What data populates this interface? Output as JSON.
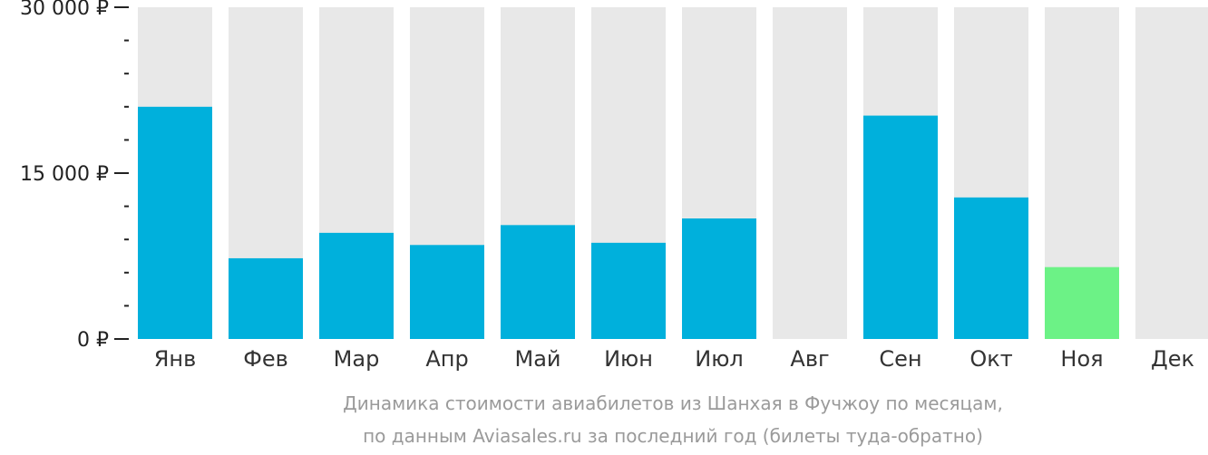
{
  "chart_data": {
    "type": "bar",
    "categories": [
      "Янв",
      "Фев",
      "Мар",
      "Апр",
      "Май",
      "Июн",
      "Июл",
      "Авг",
      "Сен",
      "Окт",
      "Ноя",
      "Дек"
    ],
    "values": [
      21000,
      7300,
      9600,
      8500,
      10300,
      8700,
      10900,
      null,
      20200,
      12800,
      6500,
      null
    ],
    "ylim": [
      0,
      30000
    ],
    "yticks": [
      {
        "value": 0,
        "label": "0 ₽"
      },
      {
        "value": 15000,
        "label": "15 000 ₽"
      },
      {
        "value": 30000,
        "label": "30 000 ₽"
      }
    ],
    "minor_tick_step": 3000,
    "highlight_category": "Ноя",
    "colors": {
      "bar": "#00b0dc",
      "highlight": "#6cf286",
      "track": "#e8e8e8",
      "axis": "#222222",
      "caption": "#9a9a9a"
    },
    "caption": [
      "Динамика стоимости авиабилетов из Шанхая в Фучжоу по месяцам,",
      "по данным Aviasales.ru за последний год (билеты туда-обратно)"
    ],
    "grid": false,
    "legend": "none"
  }
}
